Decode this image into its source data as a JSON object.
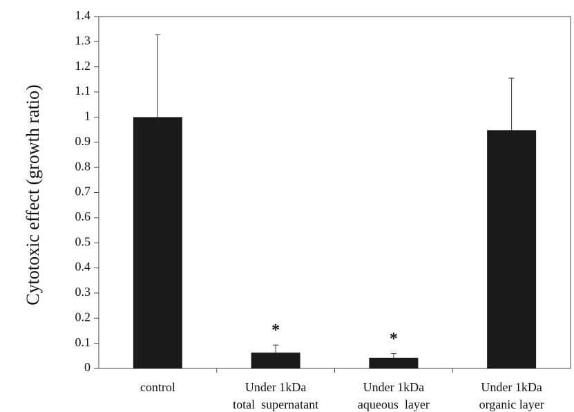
{
  "chart_data": {
    "type": "bar",
    "title": "",
    "xlabel": "",
    "ylabel": "Cytotoxic effect (growth ratio)",
    "ylim": [
      0,
      1.4
    ],
    "yticks": [
      "0",
      "0.1",
      "0.2",
      "0.3",
      "0.4",
      "0.5",
      "0.6",
      "0.7",
      "0.8",
      "0.9",
      "1",
      "1.1",
      "1.2",
      "1.3",
      "1.4"
    ],
    "grid": false,
    "bar_color": "#1a1a1a",
    "categories": [
      [
        "control"
      ],
      [
        "Under 1kDa",
        "total  supernatant"
      ],
      [
        "Under 1kDa",
        "aqueous  layer"
      ],
      [
        "Under 1kDa",
        "organic layer"
      ]
    ],
    "values": [
      1.0,
      0.063,
      0.042,
      0.948
    ],
    "error_upper": [
      0.328,
      0.03,
      0.017,
      0.207
    ],
    "annotations": [
      "",
      "*",
      "*",
      ""
    ]
  }
}
